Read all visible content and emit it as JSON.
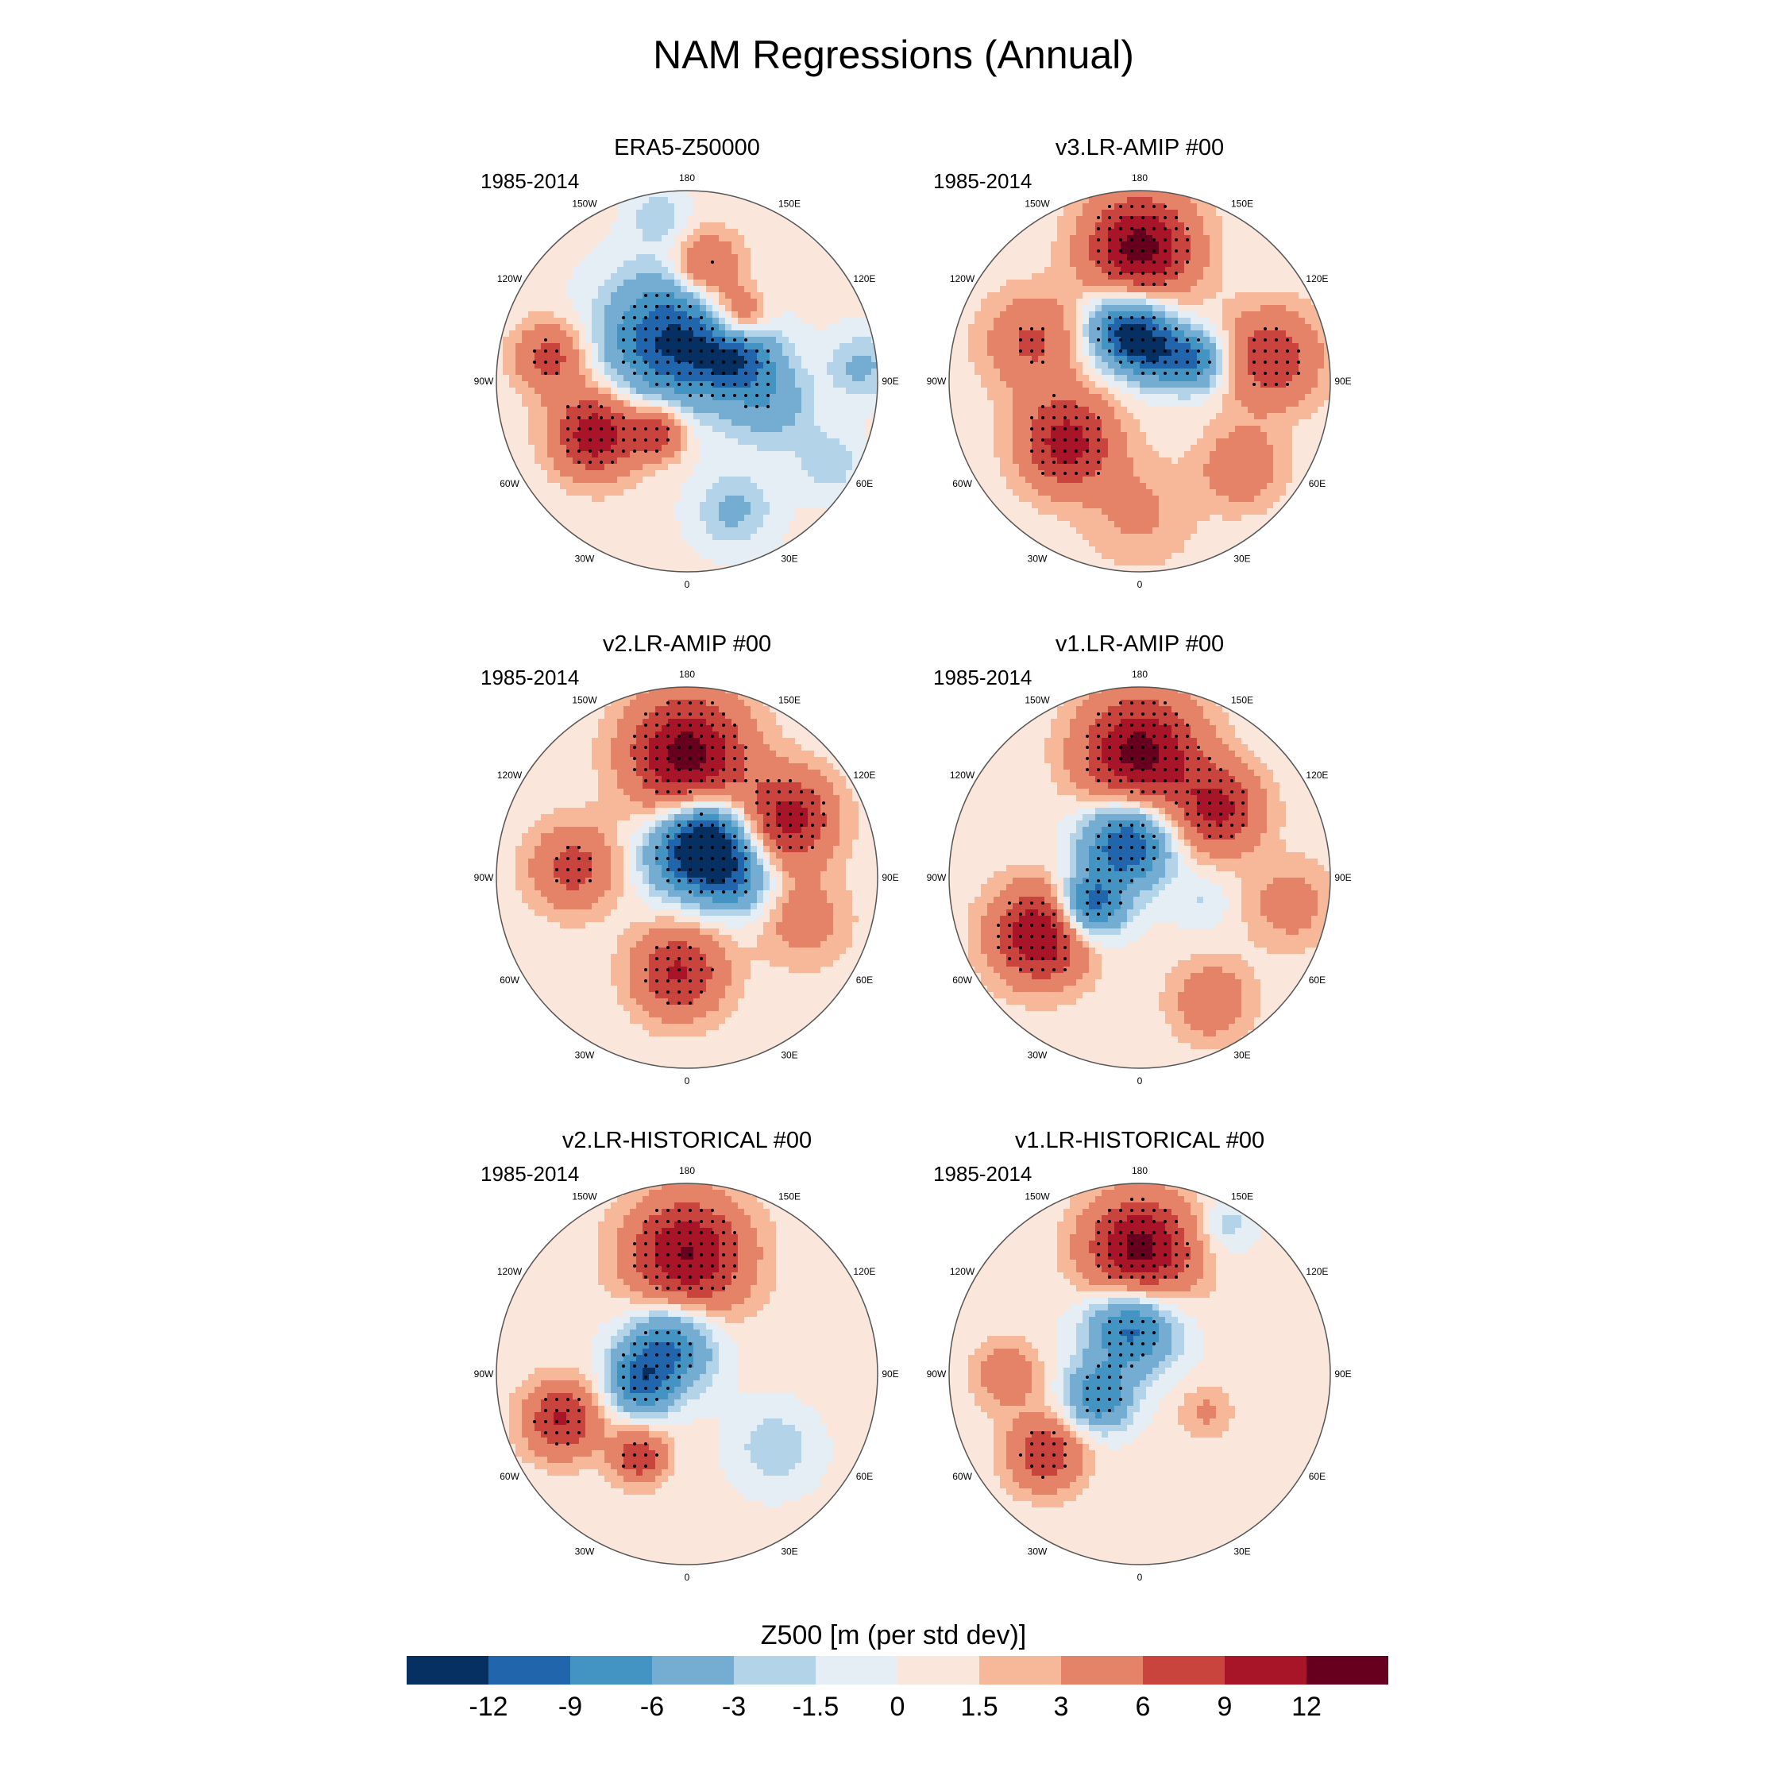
{
  "figure": {
    "title": "NAM Regressions (Annual)",
    "period": "1985-2014"
  },
  "longitude_labels": [
    "180",
    "150E",
    "120E",
    "90E",
    "60E",
    "30E",
    "0",
    "30W",
    "60W",
    "90W",
    "120W",
    "150W"
  ],
  "panels": [
    {
      "title": "ERA5-Z50000",
      "period": "1985-2014"
    },
    {
      "title": "v3.LR-AMIP  #00",
      "period": "1985-2014"
    },
    {
      "title": "v2.LR-AMIP  #00",
      "period": "1985-2014"
    },
    {
      "title": "v1.LR-AMIP  #00",
      "period": "1985-2014"
    },
    {
      "title": "v2.LR-HISTORICAL  #00",
      "period": "1985-2014"
    },
    {
      "title": "v1.LR-HISTORICAL  #00",
      "period": "1985-2014"
    }
  ],
  "colorbar": {
    "title": "Z500 [m (per std dev)]",
    "levels": [
      "-12",
      "-9",
      "-6",
      "-3",
      "-1.5",
      "0",
      "1.5",
      "3",
      "6",
      "9",
      "12"
    ],
    "colors": [
      "#053061",
      "#2166ac",
      "#4393c3",
      "#74add1",
      "#b3d3e8",
      "#e4eef4",
      "#fbe6dc",
      "#f7b799",
      "#e58368",
      "#c9443d",
      "#a81529",
      "#67001f"
    ]
  },
  "map_fields": {
    "ERA5": [
      {
        "theta": 200,
        "r": 0.23,
        "value": -13,
        "size": 0.24
      },
      {
        "theta": 120,
        "r": 0.3,
        "value": -10,
        "size": 0.14
      },
      {
        "theta": 75,
        "r": 0.45,
        "value": -5,
        "size": 0.16
      },
      {
        "theta": 20,
        "r": 0.72,
        "value": -4,
        "size": 0.14
      },
      {
        "theta": 95,
        "r": 0.92,
        "value": -4,
        "size": 0.12
      },
      {
        "theta": 60,
        "r": 0.86,
        "value": -3,
        "size": 0.12
      },
      {
        "theta": 170,
        "r": 0.6,
        "value": 8,
        "size": 0.13
      },
      {
        "theta": 140,
        "r": 0.42,
        "value": 10,
        "size": 0.11
      },
      {
        "theta": 300,
        "r": 0.55,
        "value": 11,
        "size": 0.16
      },
      {
        "theta": 260,
        "r": 0.73,
        "value": 7,
        "size": 0.13
      },
      {
        "theta": 330,
        "r": 0.3,
        "value": 8,
        "size": 0.1
      },
      {
        "theta": 190,
        "r": 0.88,
        "value": -3,
        "size": 0.1
      }
    ],
    "v3AMIP": [
      {
        "theta": 195,
        "r": 0.28,
        "value": -13,
        "size": 0.14
      },
      {
        "theta": 110,
        "r": 0.32,
        "value": -9,
        "size": 0.11
      },
      {
        "theta": 150,
        "r": 0.18,
        "value": -8,
        "size": 0.12
      },
      {
        "theta": 180,
        "r": 0.7,
        "value": 13,
        "size": 0.2
      },
      {
        "theta": 310,
        "r": 0.5,
        "value": 10,
        "size": 0.18
      },
      {
        "theta": 100,
        "r": 0.7,
        "value": 8,
        "size": 0.18
      },
      {
        "theta": 250,
        "r": 0.6,
        "value": 6,
        "size": 0.18
      },
      {
        "theta": 50,
        "r": 0.7,
        "value": 5,
        "size": 0.15
      },
      {
        "theta": 0,
        "r": 0.7,
        "value": 3,
        "size": 0.2
      }
    ],
    "v2AMIP": [
      {
        "theta": 180,
        "r": 0.12,
        "value": -10,
        "size": 0.16
      },
      {
        "theta": 150,
        "r": 0.25,
        "value": -10,
        "size": 0.14
      },
      {
        "theta": 90,
        "r": 0.25,
        "value": -8,
        "size": 0.14
      },
      {
        "theta": 180,
        "r": 0.65,
        "value": 13,
        "size": 0.22
      },
      {
        "theta": 120,
        "r": 0.62,
        "value": 10,
        "size": 0.17
      },
      {
        "theta": 355,
        "r": 0.5,
        "value": 9,
        "size": 0.17
      },
      {
        "theta": 265,
        "r": 0.6,
        "value": 7,
        "size": 0.16
      },
      {
        "theta": 70,
        "r": 0.65,
        "value": 4,
        "size": 0.17
      }
    ],
    "v1AMIP": [
      {
        "theta": 200,
        "r": 0.2,
        "value": -13,
        "size": 0.16
      },
      {
        "theta": 300,
        "r": 0.3,
        "value": -12,
        "size": 0.12
      },
      {
        "theta": 70,
        "r": 0.35,
        "value": -2,
        "size": 0.1
      },
      {
        "theta": 180,
        "r": 0.65,
        "value": 13,
        "size": 0.22
      },
      {
        "theta": 300,
        "r": 0.6,
        "value": 12,
        "size": 0.18
      },
      {
        "theta": 130,
        "r": 0.55,
        "value": 9,
        "size": 0.16
      },
      {
        "theta": 80,
        "r": 0.8,
        "value": 4,
        "size": 0.16
      },
      {
        "theta": 30,
        "r": 0.75,
        "value": 5,
        "size": 0.15
      }
    ],
    "v2HIST": [
      {
        "theta": 210,
        "r": 0.18,
        "value": -10,
        "size": 0.16
      },
      {
        "theta": 280,
        "r": 0.25,
        "value": -9,
        "size": 0.12
      },
      {
        "theta": 50,
        "r": 0.6,
        "value": -3,
        "size": 0.15
      },
      {
        "theta": 180,
        "r": 0.62,
        "value": 12,
        "size": 0.22
      },
      {
        "theta": 290,
        "r": 0.7,
        "value": 9,
        "size": 0.14
      },
      {
        "theta": 330,
        "r": 0.5,
        "value": 8,
        "size": 0.1
      },
      {
        "theta": 100,
        "r": 0.85,
        "value": 1,
        "size": 0.18
      }
    ],
    "v1HIST": [
      {
        "theta": 190,
        "r": 0.25,
        "value": -11,
        "size": 0.16
      },
      {
        "theta": 300,
        "r": 0.25,
        "value": -9,
        "size": 0.12
      },
      {
        "theta": 180,
        "r": 0.65,
        "value": 13,
        "size": 0.2
      },
      {
        "theta": 310,
        "r": 0.65,
        "value": 8,
        "size": 0.14
      },
      {
        "theta": 270,
        "r": 0.7,
        "value": 5,
        "size": 0.12
      },
      {
        "theta": 60,
        "r": 0.4,
        "value": 3,
        "size": 0.1
      },
      {
        "theta": 150,
        "r": 0.9,
        "value": -3,
        "size": 0.1
      }
    ]
  }
}
